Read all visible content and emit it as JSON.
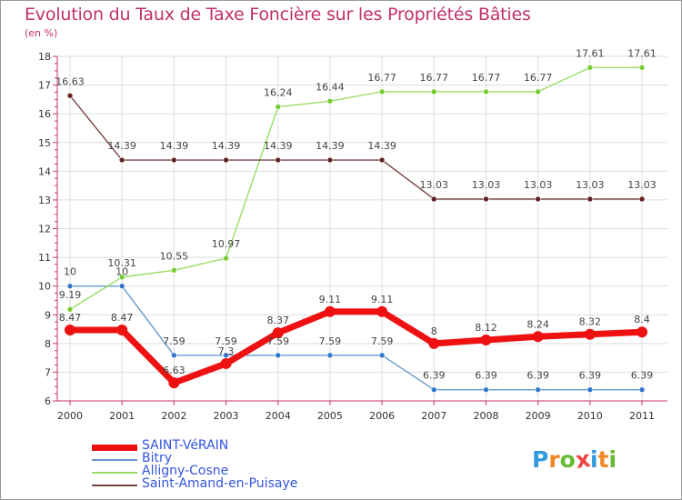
{
  "title": "Evolution du Taux de Taxe Foncière sur les Propriétés Bâties",
  "unit": "(en %)",
  "colors": {
    "title": "#c0306a",
    "axis": "#cc3366",
    "grid": "#dddddd",
    "legend_text": "#3355dd"
  },
  "chart_data": {
    "type": "line",
    "title": "Evolution du Taux de Taxe Foncière sur les Propriétés Bâties",
    "ylabel": "(en %)",
    "xlabel": "",
    "x": [
      "2000",
      "2001",
      "2002",
      "2003",
      "2004",
      "2005",
      "2006",
      "2007",
      "2008",
      "2009",
      "2010",
      "2011"
    ],
    "ylim": [
      6,
      18
    ],
    "yticks": [
      "6",
      "7",
      "8",
      "9",
      "10",
      "11",
      "12",
      "13",
      "14",
      "15",
      "16",
      "17",
      "18"
    ],
    "grid": true,
    "legend_position": "bottom-left",
    "series": [
      {
        "name": "SAINT-VéRAIN",
        "color": "#ee1111",
        "marker": "#ee1111",
        "bold": true,
        "values": [
          8.47,
          8.47,
          6.63,
          7.3,
          8.37,
          9.11,
          9.11,
          8,
          8.12,
          8.24,
          8.32,
          8.4
        ],
        "labels": [
          "8.47",
          "8.47",
          "6.63",
          "7.3",
          "8.37",
          "9.11",
          "9.11",
          "8",
          "8.12",
          "8.24",
          "8.32",
          "8.4"
        ]
      },
      {
        "name": "Bitry",
        "color": "#6699cc",
        "marker": "#3377cc",
        "bold": false,
        "values": [
          10,
          10,
          7.59,
          7.59,
          7.59,
          7.59,
          7.59,
          6.39,
          6.39,
          6.39,
          6.39,
          6.39
        ],
        "labels": [
          "10",
          "10",
          "7.59",
          "7.59",
          "7.59",
          "7.59",
          "7.59",
          "6.39",
          "6.39",
          "6.39",
          "6.39",
          "6.39"
        ]
      },
      {
        "name": "Alligny-Cosne",
        "color": "#99dd66",
        "marker": "#77cc33",
        "bold": false,
        "values": [
          9.19,
          10.31,
          10.55,
          10.97,
          16.24,
          16.44,
          16.77,
          16.77,
          16.77,
          16.77,
          17.61,
          17.61
        ],
        "labels": [
          "9.19",
          "10.31",
          "10.55",
          "10.97",
          "16.24",
          "16.44",
          "16.77",
          "16.77",
          "16.77",
          "16.77",
          "17.61",
          "17.61"
        ]
      },
      {
        "name": "Saint-Amand-en-Puisaye",
        "color": "#774444",
        "marker": "#662222",
        "bold": false,
        "values": [
          16.63,
          14.39,
          14.39,
          14.39,
          14.39,
          14.39,
          14.39,
          13.03,
          13.03,
          13.03,
          13.03,
          13.03
        ],
        "labels": [
          "16.63",
          "14.39",
          "14.39",
          "14.39",
          "14.39",
          "14.39",
          "14.39",
          "13.03",
          "13.03",
          "13.03",
          "13.03",
          "13.03"
        ]
      }
    ]
  },
  "logo": {
    "letters": [
      "P",
      "r",
      "o",
      "x",
      "i",
      "t",
      "i"
    ],
    "colors": [
      "#3399dd",
      "#ee8822",
      "#66bb33",
      "#ee4444",
      "#3399dd",
      "#ee8822",
      "#66bb33"
    ]
  }
}
